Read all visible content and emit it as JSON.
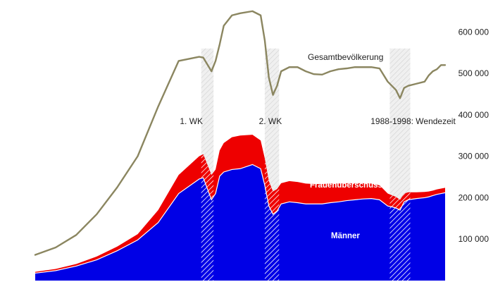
{
  "chart_data": {
    "type": "area",
    "title": "",
    "xlabel": "",
    "ylabel": "",
    "ylim": [
      0,
      660000
    ],
    "y_ticks": [
      {
        "value": 100000,
        "label": "100 000"
      },
      {
        "value": 200000,
        "label": "200 000"
      },
      {
        "value": 300000,
        "label": "300 000"
      },
      {
        "value": 400000,
        "label": "400 000"
      },
      {
        "value": 500000,
        "label": "500 000"
      },
      {
        "value": 600000,
        "label": "600 000"
      }
    ],
    "grid": false,
    "legend": "none",
    "x_range": [
      0,
      100
    ],
    "x": [
      0,
      5,
      10,
      15,
      20,
      25,
      30,
      35,
      40,
      41,
      43,
      44,
      45,
      46,
      48,
      50,
      53,
      55,
      56,
      57,
      58,
      59,
      60,
      62,
      64,
      66,
      68,
      70,
      72,
      74,
      76,
      78,
      80,
      82,
      84,
      86,
      87,
      88,
      89,
      90,
      91,
      93,
      95,
      96,
      97,
      98,
      99,
      100
    ],
    "series": [
      {
        "name": "Gesamtbevölkerung",
        "values": [
          62000,
          80000,
          110000,
          160000,
          225000,
          300000,
          420000,
          530000,
          540000,
          538000,
          505000,
          530000,
          570000,
          615000,
          640000,
          645000,
          650000,
          640000,
          580000,
          490000,
          448000,
          470000,
          505000,
          515000,
          515000,
          505000,
          498000,
          497000,
          505000,
          510000,
          512000,
          515000,
          515000,
          515000,
          512000,
          480000,
          470000,
          460000,
          440000,
          465000,
          470000,
          475000,
          480000,
          495000,
          505000,
          510000,
          520000,
          520000
        ],
        "color": "#8b8660"
      },
      {
        "name": "Männer",
        "values": [
          18000,
          24000,
          35000,
          50000,
          72000,
          98000,
          140000,
          210000,
          245000,
          248000,
          195000,
          210000,
          252000,
          262000,
          268000,
          270000,
          280000,
          270000,
          230000,
          180000,
          160000,
          168000,
          185000,
          190000,
          188000,
          185000,
          185000,
          185000,
          188000,
          190000,
          193000,
          195000,
          197000,
          198000,
          195000,
          180000,
          178000,
          175000,
          170000,
          190000,
          195000,
          198000,
          200000,
          202000,
          205000,
          208000,
          210000,
          212000
        ],
        "color": "#0000e6"
      },
      {
        "name": "Frauenüberschuss",
        "values": [
          3000,
          4000,
          5000,
          8000,
          10000,
          14000,
          30000,
          45000,
          55000,
          57000,
          60000,
          58000,
          62000,
          70000,
          78000,
          80000,
          72000,
          68000,
          65000,
          60000,
          55000,
          53000,
          50000,
          50000,
          50000,
          49000,
          48000,
          48000,
          46000,
          44000,
          42000,
          40000,
          38000,
          36000,
          35000,
          30000,
          28000,
          27000,
          25000,
          20000,
          18000,
          15000,
          14000,
          13000,
          12000,
          12000,
          12000,
          12000
        ],
        "color": "#ee0000"
      }
    ],
    "periods": [
      {
        "label": "1. WK",
        "start": 40.5,
        "end": 43.5
      },
      {
        "label": "2. WK",
        "start": 56,
        "end": 59.5
      },
      {
        "label": "1988-1998: Wendezeit",
        "start": 86.5,
        "end": 91.5
      }
    ],
    "labels": {
      "total": "Gesamtbevölkerung",
      "surplus": "Frauenüberschuss",
      "men": "Männer"
    }
  }
}
